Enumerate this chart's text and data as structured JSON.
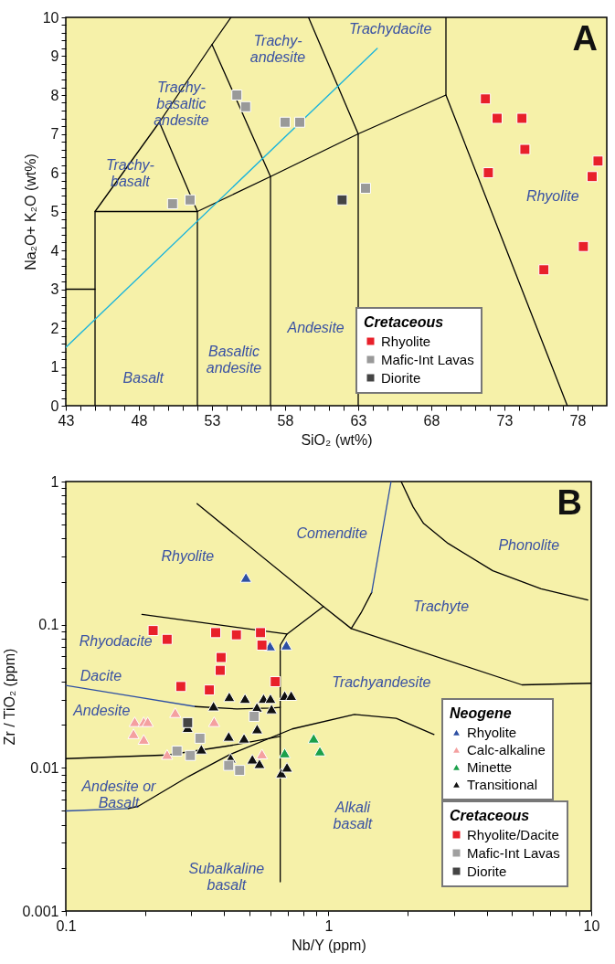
{
  "chart_data": [
    {
      "type": "scatter",
      "title": "A",
      "xlabel": "SiO₂ (wt%)",
      "ylabel": "Na₂O+ K₂O (wt%)",
      "legend_title": "Cretaceous",
      "legend": "bottom right",
      "xlim": [
        43,
        80
      ],
      "ylim": [
        0,
        10
      ],
      "xticks": [
        43,
        {
          "value": 44,
          "label": null
        },
        {
          "value": 45,
          "label": null
        },
        {
          "value": 46,
          "label": null
        },
        {
          "value": 47,
          "label": null
        },
        48,
        {
          "value": 49,
          "label": null
        },
        {
          "value": 50,
          "label": null
        },
        {
          "value": 51,
          "label": null
        },
        {
          "value": 52,
          "label": null
        },
        53,
        {
          "value": 54,
          "label": null
        },
        {
          "value": 55,
          "label": null
        },
        {
          "value": 56,
          "label": null
        },
        {
          "value": 57,
          "label": null
        },
        58,
        {
          "value": 59,
          "label": null
        },
        {
          "value": 60,
          "label": null
        },
        {
          "value": 61,
          "label": null
        },
        {
          "value": 62,
          "label": null
        },
        63,
        {
          "value": 64,
          "label": null
        },
        {
          "value": 65,
          "label": null
        },
        {
          "value": 66,
          "label": null
        },
        {
          "value": 67,
          "label": null
        },
        68,
        {
          "value": 69,
          "label": null
        },
        {
          "value": 70,
          "label": null
        },
        {
          "value": 71,
          "label": null
        },
        {
          "value": 72,
          "label": null
        },
        73,
        {
          "value": 74,
          "label": null
        },
        {
          "value": 75,
          "label": null
        },
        {
          "value": 76,
          "label": null
        },
        {
          "value": 77,
          "label": null
        },
        78,
        {
          "value": 79,
          "label": null
        }
      ],
      "yticks": [
        0,
        {
          "value": 0.2,
          "label": null
        },
        {
          "value": 0.4,
          "label": null
        },
        {
          "value": 0.6,
          "label": null
        },
        {
          "value": 0.8,
          "label": null
        },
        1,
        {
          "value": 1.2,
          "label": null
        },
        {
          "value": 1.4,
          "label": null
        },
        {
          "value": 1.6,
          "label": null
        },
        {
          "value": 1.8,
          "label": null
        },
        2,
        {
          "value": 2.2,
          "label": null
        },
        {
          "value": 2.4,
          "label": null
        },
        {
          "value": 2.6,
          "label": null
        },
        {
          "value": 2.8,
          "label": null
        },
        3,
        {
          "value": 3.2,
          "label": null
        },
        {
          "value": 3.4,
          "label": null
        },
        {
          "value": 3.6,
          "label": null
        },
        {
          "value": 3.8,
          "label": null
        },
        4,
        {
          "value": 4.2,
          "label": null
        },
        {
          "value": 4.4,
          "label": null
        },
        {
          "value": 4.6,
          "label": null
        },
        {
          "value": 4.8,
          "label": null
        },
        5,
        {
          "value": 5.2,
          "label": null
        },
        {
          "value": 5.4,
          "label": null
        },
        {
          "value": 5.6,
          "label": null
        },
        {
          "value": 5.8,
          "label": null
        },
        6,
        {
          "value": 6.2,
          "label": null
        },
        {
          "value": 6.4,
          "label": null
        },
        {
          "value": 6.6,
          "label": null
        },
        {
          "value": 6.8,
          "label": null
        },
        7,
        {
          "value": 7.2,
          "label": null
        },
        {
          "value": 7.4,
          "label": null
        },
        {
          "value": 7.6,
          "label": null
        },
        {
          "value": 7.8,
          "label": null
        },
        8,
        {
          "value": 8.2,
          "label": null
        },
        {
          "value": 8.4,
          "label": null
        },
        {
          "value": 8.6,
          "label": null
        },
        {
          "value": 8.8,
          "label": null
        },
        9,
        {
          "value": 9.2,
          "label": null
        },
        {
          "value": 9.4,
          "label": null
        },
        {
          "value": 9.6,
          "label": null
        },
        {
          "value": 9.8,
          "label": null
        },
        10
      ],
      "series": [
        {
          "type": "line",
          "color": "#000000",
          "x": [
            43,
            45
          ],
          "values": [
            3,
            3
          ]
        },
        {
          "type": "line",
          "color": "#000000",
          "x": [
            45,
            45,
            52,
            52
          ],
          "values": [
            0,
            5,
            5,
            0
          ]
        },
        {
          "type": "line",
          "color": "#000000",
          "x": [
            45,
            49.4,
            53,
            54.3
          ],
          "values": [
            5,
            7.3,
            9.3,
            10
          ]
        },
        {
          "type": "line",
          "color": "#000000",
          "x": [
            49.4,
            52,
            57,
            63,
            69,
            77.3
          ],
          "values": [
            7.3,
            5,
            5.9,
            7,
            8,
            0
          ]
        },
        {
          "type": "line",
          "color": "#000000",
          "x": [
            53,
            57,
            57
          ],
          "values": [
            9.3,
            5.9,
            0
          ]
        },
        {
          "type": "line",
          "color": "#000000",
          "x": [
            59.6,
            63,
            63
          ],
          "values": [
            10,
            7,
            0
          ]
        },
        {
          "type": "line",
          "color": "#000000",
          "x": [
            69,
            69
          ],
          "values": [
            10,
            8
          ]
        },
        {
          "type": "line",
          "color": "#1ab4dc",
          "x": [
            43,
            64.3
          ],
          "values": [
            1.5,
            9.2
          ]
        },
        {
          "name": "Rhyolite",
          "marker": "square",
          "color": "#e8202a",
          "x": [
            71.7,
            72.5,
            74.2,
            74.4,
            71.9,
            79.4,
            79.0,
            78.4,
            75.7
          ],
          "values": [
            7.9,
            7.4,
            7.4,
            6.6,
            6.0,
            6.3,
            5.9,
            4.1,
            3.5
          ]
        },
        {
          "name": "Mafic-Int Lavas",
          "marker": "square",
          "color": "#999999",
          "x": [
            50.3,
            51.5,
            54.7,
            55.3,
            58.0,
            59.0,
            63.5
          ],
          "values": [
            5.2,
            5.3,
            8.0,
            7.7,
            7.3,
            7.3,
            5.6
          ]
        },
        {
          "name": "Diorite",
          "marker": "square",
          "color": "#444444",
          "x": [
            61.9
          ],
          "values": [
            5.3
          ]
        }
      ],
      "annotations": [
        "Trachy-\nbasalt",
        "Trachy-\nbasaltic\nandesite",
        "Trachy-\nandesite",
        "Trachydacite",
        "Rhyolite",
        "Basalt",
        "Basaltic\nandesite",
        "Andesite"
      ]
    },
    {
      "type": "scatter",
      "title": "B",
      "xlabel": "Nb/Y (ppm)",
      "ylabel": "Zr / TiO₂ (ppm)",
      "legend_title": [
        "Neogene",
        "Cretaceous"
      ],
      "legend": "bottom right",
      "log": "xy",
      "xlim": [
        0.1,
        10
      ],
      "ylim": [
        0.001,
        1
      ],
      "xticks": [
        0.1,
        {
          "value": 0.2,
          "label": null
        },
        {
          "value": 0.3,
          "label": null
        },
        {
          "value": 0.4,
          "label": null
        },
        {
          "value": 0.5,
          "label": null
        },
        {
          "value": 0.6,
          "label": null
        },
        {
          "value": 0.7,
          "label": null
        },
        {
          "value": 0.8,
          "label": null
        },
        {
          "value": 0.9,
          "label": null
        },
        1,
        {
          "value": 2,
          "label": null
        },
        {
          "value": 3,
          "label": null
        },
        {
          "value": 4,
          "label": null
        },
        {
          "value": 5,
          "label": null
        },
        {
          "value": 6,
          "label": null
        },
        {
          "value": 7,
          "label": null
        },
        {
          "value": 8,
          "label": null
        },
        {
          "value": 9,
          "label": null
        },
        10
      ],
      "yticks": [
        0.001,
        {
          "value": 0.002,
          "label": null
        },
        {
          "value": 0.003,
          "label": null
        },
        {
          "value": 0.004,
          "label": null
        },
        {
          "value": 0.005,
          "label": null
        },
        {
          "value": 0.006,
          "label": null
        },
        {
          "value": 0.007,
          "label": null
        },
        {
          "value": 0.008,
          "label": null
        },
        {
          "value": 0.009,
          "label": null
        },
        0.01,
        {
          "value": 0.02,
          "label": null
        },
        {
          "value": 0.03,
          "label": null
        },
        {
          "value": 0.04,
          "label": null
        },
        {
          "value": 0.05,
          "label": null
        },
        {
          "value": 0.06,
          "label": null
        },
        {
          "value": 0.07,
          "label": null
        },
        {
          "value": 0.08,
          "label": null
        },
        {
          "value": 0.09,
          "label": null
        },
        0.1,
        {
          "value": 0.2,
          "label": null
        },
        {
          "value": 0.3,
          "label": null
        },
        {
          "value": 0.4,
          "label": null
        },
        {
          "value": 0.5,
          "label": null
        },
        {
          "value": 0.6,
          "label": null
        },
        {
          "value": 0.7,
          "label": null
        },
        {
          "value": 0.8,
          "label": null
        },
        {
          "value": 0.9,
          "label": null
        },
        1
      ],
      "series": [
        {
          "type": "line",
          "color": "#000000",
          "x": [
            0.316,
            0.956,
            1.22,
            5.45,
            10
          ],
          "values": [
            0.7,
            0.134,
            0.094,
            0.038,
            0.039
          ]
        },
        {
          "type": "line",
          "color": "#000000",
          "x": [
            0.956,
            0.695,
            0.655,
            0.655
          ],
          "values": [
            0.134,
            0.086,
            0.072,
            0.0016
          ]
        },
        {
          "type": "line",
          "color": "#000000",
          "x": [
            0.195,
            0.695
          ],
          "values": [
            0.118,
            0.086
          ]
        },
        {
          "type": "line",
          "color": "#000000",
          "x": [
            1.22,
            1.33,
            1.46
          ],
          "values": [
            0.094,
            0.121,
            0.168
          ]
        },
        {
          "type": "line",
          "color": "#2d4fa3",
          "x": [
            1.46,
            1.73
          ],
          "values": [
            0.168,
            1
          ]
        },
        {
          "type": "line",
          "color": "#000000",
          "x": [
            1.89,
            2.1,
            2.3,
            2.85,
            4.22,
            6.44,
            9.7
          ],
          "values": [
            1,
            0.664,
            0.51,
            0.37,
            0.238,
            0.178,
            0.149
          ]
        },
        {
          "type": "line",
          "color": "#2d4fa3",
          "x": [
            0.1,
            0.311
          ],
          "values": [
            0.0377,
            0.0268
          ]
        },
        {
          "type": "line",
          "color": "#000000",
          "x": [
            0.311,
            0.448,
            0.607,
            0.655
          ],
          "values": [
            0.0268,
            0.0258,
            0.0262,
            0.0265
          ]
        },
        {
          "type": "line",
          "color": "#000000",
          "x": [
            0.1,
            0.244,
            0.422,
            0.655
          ],
          "values": [
            0.0116,
            0.0123,
            0.0143,
            0.0166
          ]
        },
        {
          "type": "line",
          "color": "#2d4fa3",
          "x": [
            0.1,
            0.173
          ],
          "values": [
            0.005,
            0.0052
          ]
        },
        {
          "type": "line",
          "color": "#000000",
          "x": [
            0.173,
            0.189,
            0.293,
            0.422,
            0.727,
            1.255,
            1.81,
            2.52
          ],
          "values": [
            0.0052,
            0.0054,
            0.0087,
            0.0124,
            0.0187,
            0.0236,
            0.0222,
            0.0171
          ]
        },
        {
          "name": "Rhyolite",
          "marker": "triangle",
          "color": "#2d4fa3",
          "x": [
            0.485,
            0.599,
            0.691
          ],
          "values": [
            0.214,
            0.071,
            0.072
          ]
        },
        {
          "name": "Calc-alkaline",
          "marker": "triangle",
          "color": "#f4a0a0",
          "x": [
            0.183,
            0.198,
            0.205,
            0.181,
            0.198,
            0.261,
            0.367,
            0.243,
            0.558
          ],
          "values": [
            0.021,
            0.021,
            0.021,
            0.0173,
            0.0158,
            0.0243,
            0.021,
            0.0124,
            0.0125
          ]
        },
        {
          "name": "Minette",
          "marker": "triangle",
          "color": "#1aa04a",
          "x": [
            0.878,
            0.681,
            0.927
          ],
          "values": [
            0.0161,
            0.0127,
            0.0131
          ]
        },
        {
          "name": "Transitional",
          "marker": "triangle",
          "color": "#111111",
          "x": [
            0.365,
            0.419,
            0.481,
            0.534,
            0.566,
            0.601,
            0.607,
            0.681,
            0.721,
            0.291,
            0.417,
            0.477,
            0.535,
            0.328,
            0.424,
            0.513,
            0.546,
            0.661,
            0.695
          ],
          "values": [
            0.027,
            0.0314,
            0.0305,
            0.0265,
            0.0305,
            0.0305,
            0.0258,
            0.032,
            0.032,
            0.0191,
            0.0166,
            0.0161,
            0.0187,
            0.0135,
            0.0117,
            0.0115,
            0.0107,
            0.0092,
            0.0101
          ]
        },
        {
          "name": "Rhyolite/Dacite",
          "marker": "square",
          "color": "#e8202a",
          "x": [
            0.215,
            0.243,
            0.372,
            0.446,
            0.551,
            0.558,
            0.39,
            0.387,
            0.274,
            0.352,
            0.627
          ],
          "values": [
            0.091,
            0.079,
            0.088,
            0.085,
            0.088,
            0.072,
            0.059,
            0.048,
            0.037,
            0.035,
            0.04
          ]
        },
        {
          "name": "Mafic-Int Lavas",
          "marker": "square",
          "color": "#a0a0a0",
          "x": [
            0.521,
            0.324,
            0.265,
            0.298,
            0.417,
            0.459
          ],
          "values": [
            0.0229,
            0.0161,
            0.0131,
            0.0122,
            0.0104,
            0.0096
          ]
        },
        {
          "name": "Diorite",
          "marker": "square",
          "color": "#444444",
          "x": [
            0.291
          ],
          "values": [
            0.0207
          ]
        }
      ],
      "annotations": [
        "Comendite",
        "Phonolite",
        "Rhyolite",
        "Trachyte",
        "Rhyodacite",
        "Dacite",
        "Trachyandesite",
        "Andesite",
        "Andesite or\nBasalt",
        "Alkali\nbasalt",
        "Subalkaline\nbasalt"
      ]
    }
  ]
}
